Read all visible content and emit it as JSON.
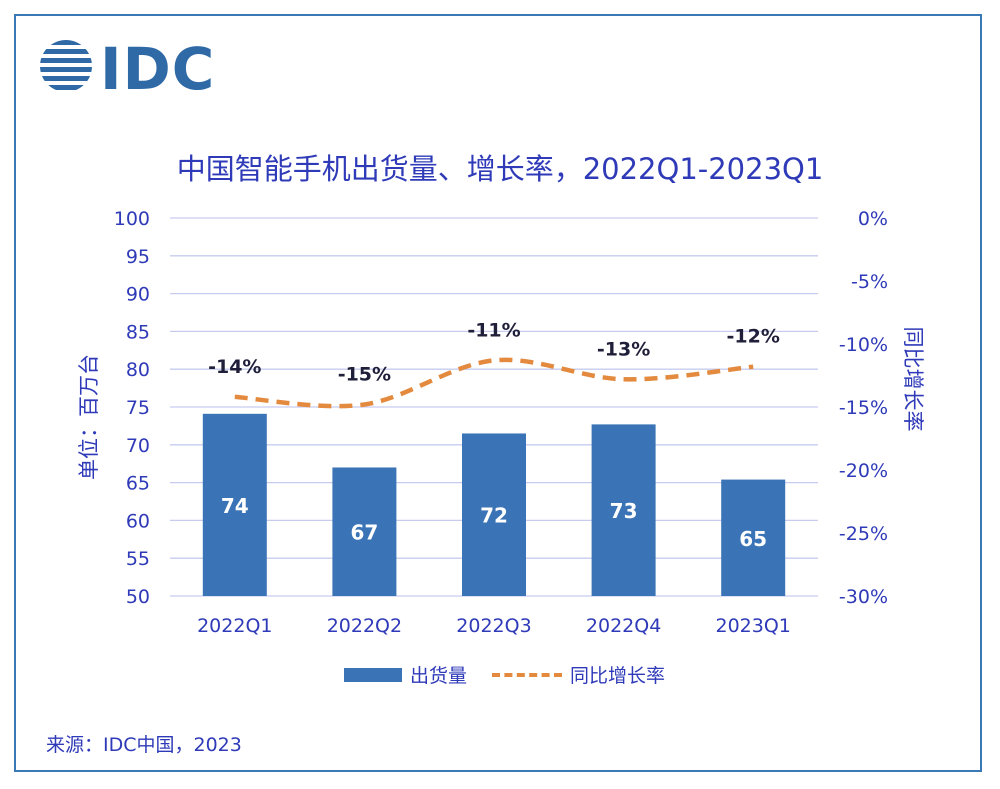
{
  "logo": {
    "text": "IDC"
  },
  "title": "中国智能手机出货量、增长率，2022Q1-2023Q1",
  "source": "来源：IDC中国，2023",
  "colors": {
    "bar": "#3b74b6",
    "line": "#e38a3e",
    "text": "#2f3ab8",
    "grid": "#c7ccef",
    "frame": "#3b78b6"
  },
  "chart_data": {
    "type": "bar",
    "categories": [
      "2022Q1",
      "2022Q2",
      "2022Q3",
      "2022Q4",
      "2023Q1"
    ],
    "series": [
      {
        "name": "出货量",
        "type": "bar",
        "axis": "left",
        "values": [
          74.1,
          67.0,
          71.5,
          72.7,
          65.4
        ],
        "labels": [
          "74",
          "67",
          "72",
          "73",
          "65"
        ]
      },
      {
        "name": "同比增长率",
        "type": "line",
        "axis": "right",
        "values": [
          -14.2,
          -14.8,
          -11.3,
          -12.8,
          -11.8
        ],
        "labels": [
          "-14%",
          "-15%",
          "-11%",
          "-13%",
          "-12%"
        ]
      }
    ],
    "ylabel": "单位：百万台",
    "ylabel_right": "同比增长率",
    "ylim": [
      50,
      100
    ],
    "ylim_right": [
      -30,
      0
    ],
    "yticks": [
      "50",
      "55",
      "60",
      "65",
      "70",
      "75",
      "80",
      "85",
      "90",
      "95",
      "100"
    ],
    "yticks_right": [
      "-30%",
      "-25%",
      "-20%",
      "-15%",
      "-10%",
      "-5%",
      "0%"
    ],
    "grid": true,
    "legend": "bottom"
  }
}
